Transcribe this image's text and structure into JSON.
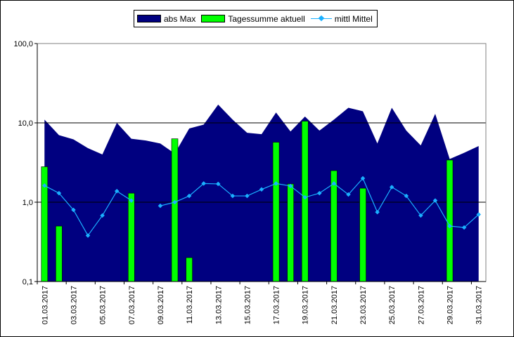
{
  "chart_data": {
    "type": "area",
    "title": "",
    "xlabel": "",
    "ylabel": "",
    "y_scale": "log",
    "ylim": [
      0.1,
      100
    ],
    "y_ticks": [
      "0,1",
      "1,0",
      "10,0",
      "100,0"
    ],
    "grid": "horizontal major lines",
    "legend_position": "top",
    "x": [
      "01.03.2017",
      "02.03.2017",
      "03.03.2017",
      "04.03.2017",
      "05.03.2017",
      "06.03.2017",
      "07.03.2017",
      "08.03.2017",
      "09.03.2017",
      "10.03.2017",
      "11.03.2017",
      "12.03.2017",
      "13.03.2017",
      "14.03.2017",
      "15.03.2017",
      "16.03.2017",
      "17.03.2017",
      "18.03.2017",
      "19.03.2017",
      "20.03.2017",
      "21.03.2017",
      "22.03.2017",
      "23.03.2017",
      "24.03.2017",
      "25.03.2017",
      "26.03.2017",
      "27.03.2017",
      "28.03.2017",
      "29.03.2017",
      "30.03.2017",
      "31.03.2017"
    ],
    "x_tick_labels": [
      "01.03.2017",
      "03.03.2017",
      "05.03.2017",
      "07.03.2017",
      "09.03.2017",
      "11.03.2017",
      "13.03.2017",
      "15.03.2017",
      "17.03.2017",
      "19.03.2017",
      "21.03.2017",
      "23.03.2017",
      "25.03.2017",
      "27.03.2017",
      "29.03.2017",
      "31.03.2017"
    ],
    "series": [
      {
        "name": "abs Max",
        "type": "area",
        "color": "#000080",
        "values": [
          11,
          7,
          6.2,
          4.8,
          4.0,
          10,
          6.3,
          6.0,
          5.5,
          4.1,
          8.5,
          9.5,
          17,
          11,
          7.5,
          7.2,
          13.5,
          7.8,
          12,
          8,
          11,
          15.5,
          14,
          5.5,
          15.5,
          8,
          5.2,
          13,
          3.5,
          4.2,
          5.1
        ]
      },
      {
        "name": "Tagessumme aktuell",
        "type": "bar",
        "color": "#00ff00",
        "values": [
          2.8,
          0.5,
          null,
          null,
          null,
          null,
          1.3,
          null,
          null,
          6.3,
          0.2,
          null,
          null,
          null,
          null,
          null,
          5.7,
          1.7,
          10.5,
          null,
          2.5,
          null,
          1.5,
          null,
          null,
          null,
          null,
          null,
          3.4,
          null,
          null
        ]
      },
      {
        "name": "mittl Mittel",
        "type": "line",
        "color": "#1ab0ff",
        "values": [
          1.62,
          1.3,
          0.8,
          0.38,
          0.68,
          1.38,
          1.05,
          null,
          0.9,
          1.0,
          1.2,
          1.72,
          1.7,
          1.2,
          1.2,
          1.45,
          1.72,
          1.6,
          1.15,
          1.3,
          1.72,
          1.25,
          2.0,
          0.75,
          1.55,
          1.2,
          0.68,
          1.05,
          0.5,
          0.48,
          0.7
        ]
      }
    ]
  },
  "colors": {
    "area": "#000080",
    "bars": "#00ff00",
    "line": "#1ab0ff",
    "gridline": "#000000"
  }
}
